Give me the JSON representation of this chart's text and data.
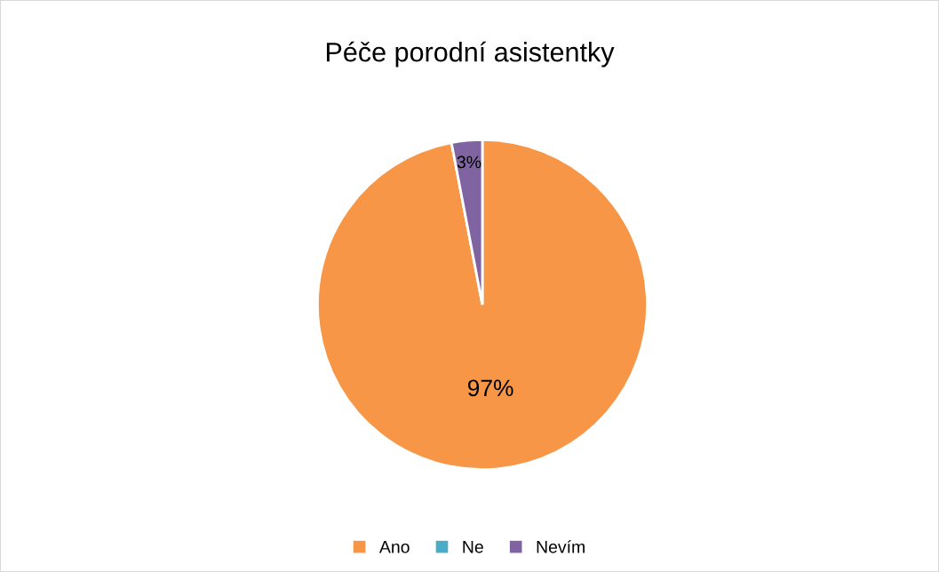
{
  "chart_data": {
    "type": "pie",
    "title": "Péče porodní asistentky",
    "categories": [
      "Ano",
      "Ne",
      "Nevím"
    ],
    "values": [
      97,
      0,
      3
    ],
    "colors": [
      "#f79646",
      "#4bacc6",
      "#8064a2"
    ],
    "value_labels": [
      "97%",
      null,
      "3%"
    ],
    "legend": "bottom"
  }
}
